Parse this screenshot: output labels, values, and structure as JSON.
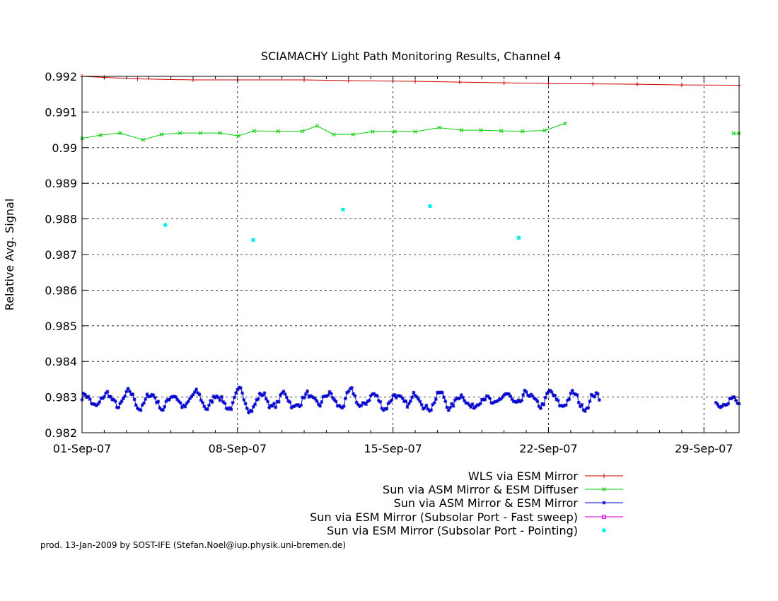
{
  "chart_data": {
    "type": "line",
    "title": "SCIAMACHY Light Path Monitoring Results, Channel 4",
    "xlabel": "",
    "ylabel": "Relative Avg. Signal",
    "xlim": [
      "2007-09-01",
      "2007-09-30T14:00"
    ],
    "ylim": [
      0.982,
      0.992
    ],
    "x_ticks": [
      "01-Sep-07",
      "08-Sep-07",
      "15-Sep-07",
      "22-Sep-07",
      "29-Sep-07"
    ],
    "y_ticks": [
      "0.982",
      "0.983",
      "0.984",
      "0.985",
      "0.986",
      "0.987",
      "0.988",
      "0.989",
      "0.99",
      "0.991",
      "0.992"
    ],
    "grid": true,
    "legend_position": "bottom-right",
    "series": [
      {
        "name": "WLS via ESM Mirror",
        "color": "#cc0000",
        "marker": "plus",
        "x": [
          "2007-09-01",
          "2007-09-02",
          "2007-09-03T12:00",
          "2007-09-06",
          "2007-09-08",
          "2007-09-11",
          "2007-09-13",
          "2007-09-16",
          "2007-09-18",
          "2007-09-20",
          "2007-09-22",
          "2007-09-24",
          "2007-09-26",
          "2007-09-28",
          "2007-09-30T14:00"
        ],
        "values": [
          0.992,
          0.99197,
          0.99193,
          0.9919,
          0.9919,
          0.9919,
          0.99188,
          0.99186,
          0.99184,
          0.99182,
          0.9918,
          0.99179,
          0.99178,
          0.99176,
          0.99175
        ]
      },
      {
        "name": "Sun via ASM Mirror & ESM Diffuser",
        "color": "#00cc00",
        "marker": "x",
        "x": [
          "2007-09-01",
          "2007-09-01T20:00",
          "2007-09-02T17:00",
          "2007-09-03T18:00",
          "2007-09-04T14:00",
          "2007-09-05T10:00",
          "2007-09-06T08:00",
          "2007-09-07T05:00",
          "2007-09-08T01:00",
          "2007-09-08T18:00",
          "2007-09-09T20:00",
          "2007-09-10T22:00",
          "2007-09-11T14:00",
          "2007-09-12T08:00",
          "2007-09-13T05:00",
          "2007-09-14T02:00",
          "2007-09-15T02:00",
          "2007-09-16T00:00",
          "2007-09-17T02:00",
          "2007-09-18T02:00",
          "2007-09-18T23:00",
          "2007-09-19T21:00",
          "2007-09-20T20:00",
          "2007-09-21T20:00",
          "2007-09-22T18:00",
          "2007-09-23T15:00",
          "2007-09-30T08:00",
          "2007-09-30T14:00"
        ],
        "values": [
          0.99026,
          0.99035,
          0.99041,
          0.99022,
          0.99037,
          0.99041,
          0.99041,
          0.99041,
          0.99033,
          0.99047,
          0.99046,
          0.99046,
          0.99061,
          0.99037,
          0.99037,
          0.99045,
          0.99045,
          0.99045,
          0.99056,
          0.99049,
          0.99049,
          0.99047,
          0.99046,
          0.99048,
          0.99068,
          null,
          0.9904,
          0.9904
        ]
      },
      {
        "name": "Sun via ASM Mirror & ESM Mirror",
        "color": "#0000cc",
        "marker": "star",
        "segments": [
          {
            "from": "2007-09-01",
            "to": "2007-09-24T07:00",
            "seed": 7,
            "baseline": 0.9829,
            "amplitude": 0.00035
          },
          {
            "from": "2007-09-29T13:00",
            "to": "2007-09-30T14:00",
            "seed": 3,
            "baseline": 0.9829,
            "amplitude": 0.00025
          }
        ]
      },
      {
        "name": "Sun via ESM Mirror (Subsolar Port - Fast sweep)",
        "color": "#cc00cc",
        "marker": "square",
        "x": [],
        "values": []
      },
      {
        "name": "Sun via ESM Mirror (Subsolar Port - Pointing)",
        "color": "#00eeee",
        "marker": "filled-square",
        "x": [
          "2007-09-04T18:00",
          "2007-09-08T17:00",
          "2007-09-12T18:00",
          "2007-09-16T16:00",
          "2007-09-20T16:00"
        ],
        "values": [
          0.98783,
          0.98741,
          0.98826,
          0.98836,
          0.98747
        ]
      }
    ]
  },
  "footer": "prod. 13-Jan-2009 by SOST-IFE (Stefan.Noel@iup.physik.uni-bremen.de)"
}
